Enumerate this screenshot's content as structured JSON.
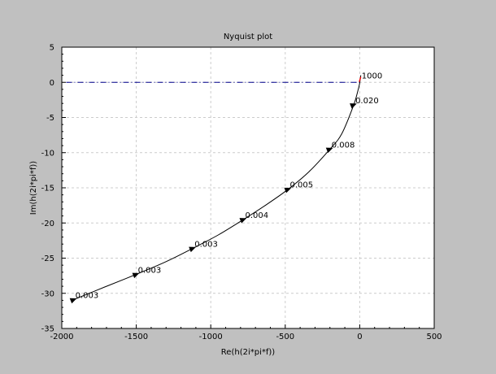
{
  "chart_data": {
    "type": "line",
    "title": "Nyquist plot",
    "xlabel": "Re(h(2i*pi*f))",
    "ylabel": "Im(h(2i*pi*f))",
    "xlim": [
      -2000,
      500
    ],
    "ylim": [
      -35,
      5
    ],
    "xticks": [
      -2000,
      -1500,
      -1000,
      -500,
      0,
      500
    ],
    "yticks": [
      5,
      0,
      -5,
      -10,
      -15,
      -20,
      -25,
      -30,
      -35
    ],
    "x_tick_labels": [
      "-2000",
      "-1500",
      "-1000",
      "-500",
      "0",
      "500"
    ],
    "y_tick_labels": [
      "5",
      "0",
      "-5",
      "-10",
      "-15",
      "-20",
      "-25",
      "-30",
      "-35"
    ],
    "grid": true,
    "colors": {
      "background": "#c0c0c0",
      "plot_area": "#ffffff",
      "curve": "#000000",
      "reference_line": "#00008b",
      "high_freq_marker": "#ff0000",
      "grid": "#cccccc"
    },
    "reference_line": {
      "style": "dash-dot",
      "y": 0,
      "x_range": [
        -1970,
        0
      ]
    },
    "series": [
      {
        "x": [
          -1920,
          -1700,
          -1500,
          -1300,
          -1120,
          -950,
          -780,
          -620,
          -480,
          -340,
          -200,
          -120,
          -40,
          -10,
          0,
          2,
          5,
          7
        ],
        "y": [
          -30.9,
          -29.0,
          -27.3,
          -25.5,
          -23.6,
          -21.7,
          -19.5,
          -17.3,
          -15.2,
          -12.7,
          -9.5,
          -7.3,
          -3.2,
          -1.0,
          -0.1,
          0.3,
          0.6,
          1.0
        ]
      }
    ],
    "markers": [
      {
        "x": -1920,
        "y": -30.9,
        "label": "0.003"
      },
      {
        "x": -1500,
        "y": -27.3,
        "label": "0.003"
      },
      {
        "x": -1120,
        "y": -23.6,
        "label": "0.003"
      },
      {
        "x": -780,
        "y": -19.5,
        "label": "0.004"
      },
      {
        "x": -480,
        "y": -15.2,
        "label": "0.005"
      },
      {
        "x": -200,
        "y": -9.5,
        "label": "0.008"
      },
      {
        "x": -40,
        "y": -3.2,
        "label": "0.020"
      },
      {
        "x": 2,
        "y": 0.3,
        "label": "1000"
      }
    ]
  }
}
